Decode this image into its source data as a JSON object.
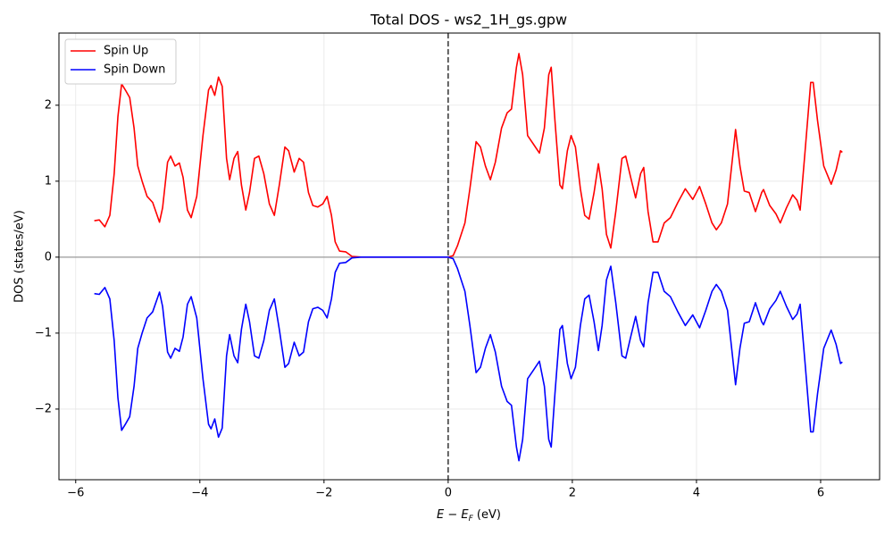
{
  "chart_data": {
    "type": "line",
    "title": "Total DOS - ws2_1H_gs.gpw",
    "xlabel_parts": [
      "E − E",
      "F",
      " (eV)"
    ],
    "ylabel": "DOS (states/eV)",
    "xlim": [
      -6.27,
      6.95
    ],
    "ylim": [
      -2.93,
      2.95
    ],
    "xticks": [
      {
        "value": -6,
        "label": "−6"
      },
      {
        "value": -4,
        "label": "−4"
      },
      {
        "value": -2,
        "label": "−2"
      },
      0,
      2,
      4,
      6
    ],
    "yticks": [
      {
        "value": -2,
        "label": "−2"
      },
      {
        "value": -1,
        "label": "−1"
      },
      0,
      1,
      2
    ],
    "grid": true,
    "legend": "upper left",
    "hline": 0,
    "vline": 0,
    "x": [
      -5.7,
      -5.62,
      -5.53,
      -5.45,
      -5.38,
      -5.32,
      -5.26,
      -5.2,
      -5.13,
      -5.06,
      -5.0,
      -4.93,
      -4.85,
      -4.76,
      -4.65,
      -4.6,
      -4.52,
      -4.47,
      -4.4,
      -4.33,
      -4.27,
      -4.2,
      -4.14,
      -4.05,
      -3.95,
      -3.86,
      -3.82,
      -3.76,
      -3.7,
      -3.64,
      -3.57,
      -3.52,
      -3.45,
      -3.39,
      -3.33,
      -3.26,
      -3.2,
      -3.12,
      -3.05,
      -2.97,
      -2.88,
      -2.8,
      -2.72,
      -2.63,
      -2.57,
      -2.48,
      -2.4,
      -2.33,
      -2.25,
      -2.18,
      -2.1,
      -2.02,
      -1.95,
      -1.88,
      -1.82,
      -1.75,
      -1.65,
      -1.55,
      -1.4,
      -1.0,
      -0.5,
      0,
      0.08,
      0.15,
      0.27,
      0.35,
      0.45,
      0.52,
      0.6,
      0.68,
      0.76,
      0.86,
      0.95,
      1.02,
      1.1,
      1.14,
      1.2,
      1.28,
      1.38,
      1.47,
      1.55,
      1.62,
      1.66,
      1.72,
      1.8,
      1.84,
      1.92,
      1.98,
      2.05,
      2.13,
      2.2,
      2.27,
      2.35,
      2.42,
      2.48,
      2.55,
      2.62,
      2.7,
      2.8,
      2.86,
      2.94,
      3.02,
      3.1,
      3.15,
      3.22,
      3.3,
      3.38,
      3.48,
      3.58,
      3.7,
      3.82,
      3.94,
      4.05,
      4.15,
      4.25,
      4.32,
      4.4,
      4.5,
      4.58,
      4.63,
      4.7,
      4.77,
      4.85,
      4.95,
      5.05,
      5.08,
      5.18,
      5.28,
      5.35,
      5.45,
      5.55,
      5.62,
      5.67,
      5.75,
      5.84,
      5.88,
      5.95,
      6.05,
      6.17,
      6.25,
      6.32,
      6.35
    ],
    "series": [
      {
        "name": "Spin Up",
        "color": "#ff0000",
        "values": [
          0.48,
          0.49,
          0.4,
          0.55,
          1.1,
          1.85,
          2.28,
          2.2,
          2.1,
          1.7,
          1.2,
          1.0,
          0.8,
          0.72,
          0.46,
          0.65,
          1.25,
          1.33,
          1.2,
          1.24,
          1.05,
          0.62,
          0.52,
          0.8,
          1.6,
          2.2,
          2.26,
          2.13,
          2.37,
          2.25,
          1.3,
          1.02,
          1.3,
          1.39,
          0.95,
          0.62,
          0.85,
          1.3,
          1.33,
          1.1,
          0.7,
          0.55,
          0.95,
          1.45,
          1.4,
          1.12,
          1.3,
          1.25,
          0.85,
          0.68,
          0.66,
          0.7,
          0.8,
          0.55,
          0.2,
          0.08,
          0.07,
          0.01,
          0,
          0,
          0,
          0,
          0.02,
          0.15,
          0.45,
          0.9,
          1.52,
          1.45,
          1.2,
          1.02,
          1.25,
          1.7,
          1.9,
          1.95,
          2.5,
          2.68,
          2.4,
          1.6,
          1.48,
          1.37,
          1.7,
          2.4,
          2.5,
          1.8,
          0.95,
          0.9,
          1.4,
          1.6,
          1.45,
          0.9,
          0.55,
          0.5,
          0.85,
          1.23,
          0.9,
          0.3,
          0.12,
          0.6,
          1.3,
          1.33,
          1.05,
          0.78,
          1.1,
          1.18,
          0.6,
          0.2,
          0.2,
          0.45,
          0.52,
          0.72,
          0.9,
          0.76,
          0.93,
          0.7,
          0.45,
          0.36,
          0.45,
          0.7,
          1.3,
          1.68,
          1.2,
          0.87,
          0.85,
          0.6,
          0.85,
          0.89,
          0.68,
          0.57,
          0.45,
          0.65,
          0.82,
          0.75,
          0.62,
          1.4,
          2.3,
          2.3,
          1.8,
          1.2,
          0.96,
          1.15,
          1.4,
          1.38
        ]
      },
      {
        "name": "Spin Down",
        "color": "#0000ff",
        "values": [
          -0.48,
          -0.49,
          -0.4,
          -0.55,
          -1.1,
          -1.85,
          -2.28,
          -2.2,
          -2.1,
          -1.7,
          -1.2,
          -1.0,
          -0.8,
          -0.72,
          -0.46,
          -0.65,
          -1.25,
          -1.33,
          -1.2,
          -1.24,
          -1.05,
          -0.62,
          -0.52,
          -0.8,
          -1.6,
          -2.2,
          -2.26,
          -2.13,
          -2.37,
          -2.25,
          -1.3,
          -1.02,
          -1.3,
          -1.39,
          -0.95,
          -0.62,
          -0.85,
          -1.3,
          -1.33,
          -1.1,
          -0.7,
          -0.55,
          -0.95,
          -1.45,
          -1.4,
          -1.12,
          -1.3,
          -1.25,
          -0.85,
          -0.68,
          -0.66,
          -0.7,
          -0.8,
          -0.55,
          -0.2,
          -0.08,
          -0.07,
          -0.01,
          0,
          0,
          0,
          0,
          -0.02,
          -0.15,
          -0.45,
          -0.9,
          -1.52,
          -1.45,
          -1.2,
          -1.02,
          -1.25,
          -1.7,
          -1.9,
          -1.95,
          -2.5,
          -2.68,
          -2.4,
          -1.6,
          -1.48,
          -1.37,
          -1.7,
          -2.4,
          -2.5,
          -1.8,
          -0.95,
          -0.9,
          -1.4,
          -1.6,
          -1.45,
          -0.9,
          -0.55,
          -0.5,
          -0.85,
          -1.23,
          -0.9,
          -0.3,
          -0.12,
          -0.6,
          -1.3,
          -1.33,
          -1.05,
          -0.78,
          -1.1,
          -1.18,
          -0.6,
          -0.2,
          -0.2,
          -0.45,
          -0.52,
          -0.72,
          -0.9,
          -0.76,
          -0.93,
          -0.7,
          -0.45,
          -0.36,
          -0.45,
          -0.7,
          -1.3,
          -1.68,
          -1.2,
          -0.87,
          -0.85,
          -0.6,
          -0.85,
          -0.89,
          -0.68,
          -0.57,
          -0.45,
          -0.65,
          -0.82,
          -0.75,
          -0.62,
          -1.4,
          -2.3,
          -2.3,
          -1.8,
          -1.2,
          -0.96,
          -1.15,
          -1.4,
          -1.38
        ]
      }
    ]
  }
}
